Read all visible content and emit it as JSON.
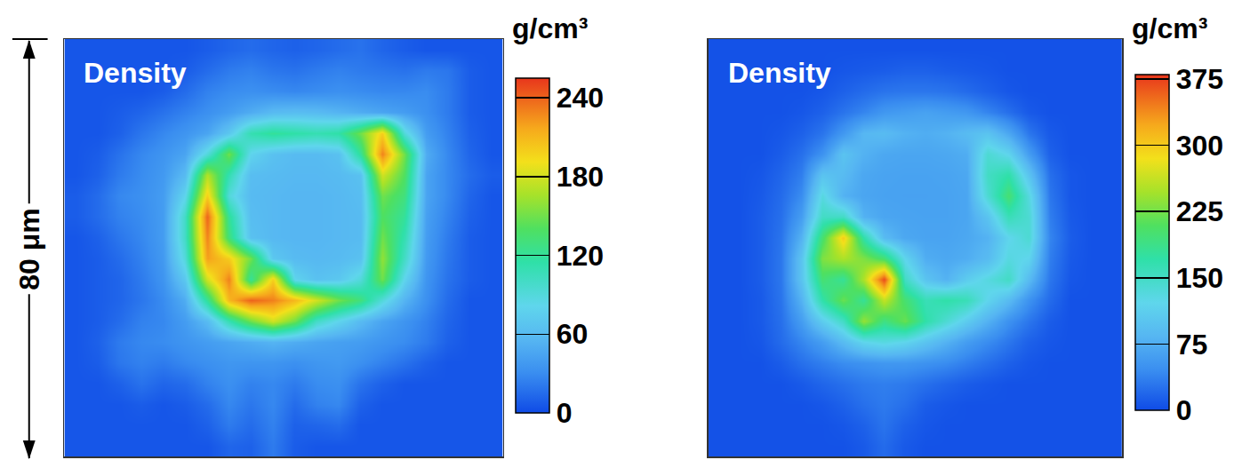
{
  "chart_data": [
    {
      "type": "heatmap",
      "title": "Density",
      "colorbar_title": "g/cm³",
      "zlim": [
        0,
        255
      ],
      "zticks": [
        0,
        60,
        120,
        180,
        240
      ],
      "grid": false,
      "tick_labels": false,
      "annotations": [
        "80 μm"
      ],
      "z": [
        [
          5,
          5,
          5,
          5,
          5,
          5,
          8,
          12,
          15,
          12,
          10,
          12,
          15,
          18,
          12,
          8,
          5,
          5,
          5,
          5
        ],
        [
          5,
          5,
          5,
          5,
          5,
          8,
          15,
          22,
          25,
          20,
          18,
          22,
          25,
          22,
          20,
          18,
          22,
          20,
          8,
          5
        ],
        [
          5,
          5,
          5,
          5,
          8,
          15,
          25,
          30,
          32,
          30,
          28,
          30,
          32,
          30,
          28,
          28,
          30,
          22,
          8,
          5
        ],
        [
          5,
          5,
          8,
          12,
          18,
          25,
          32,
          40,
          50,
          60,
          62,
          60,
          55,
          50,
          45,
          40,
          32,
          22,
          8,
          5
        ],
        [
          5,
          5,
          10,
          20,
          28,
          35,
          45,
          70,
          110,
          120,
          115,
          110,
          115,
          150,
          200,
          90,
          40,
          25,
          10,
          5
        ],
        [
          5,
          8,
          18,
          28,
          35,
          45,
          90,
          150,
          80,
          65,
          60,
          60,
          65,
          120,
          230,
          150,
          50,
          28,
          12,
          5
        ],
        [
          5,
          10,
          22,
          30,
          38,
          60,
          170,
          110,
          62,
          60,
          58,
          58,
          60,
          65,
          180,
          140,
          45,
          28,
          15,
          8
        ],
        [
          8,
          15,
          28,
          32,
          40,
          80,
          200,
          90,
          60,
          58,
          56,
          56,
          58,
          62,
          150,
          130,
          45,
          28,
          12,
          5
        ],
        [
          8,
          15,
          25,
          30,
          40,
          100,
          240,
          120,
          62,
          58,
          56,
          56,
          58,
          60,
          140,
          120,
          42,
          25,
          10,
          5
        ],
        [
          5,
          10,
          20,
          28,
          40,
          100,
          230,
          130,
          65,
          58,
          56,
          56,
          58,
          60,
          150,
          110,
          40,
          22,
          8,
          5
        ],
        [
          5,
          8,
          15,
          25,
          38,
          90,
          220,
          200,
          150,
          70,
          60,
          58,
          60,
          65,
          160,
          100,
          38,
          20,
          8,
          5
        ],
        [
          5,
          8,
          12,
          22,
          35,
          70,
          180,
          230,
          120,
          200,
          80,
          65,
          70,
          90,
          150,
          80,
          35,
          18,
          8,
          5
        ],
        [
          5,
          8,
          12,
          20,
          30,
          50,
          120,
          210,
          240,
          230,
          210,
          180,
          150,
          130,
          90,
          55,
          32,
          15,
          5,
          5
        ],
        [
          5,
          8,
          15,
          25,
          28,
          40,
          60,
          110,
          150,
          180,
          150,
          100,
          80,
          60,
          45,
          35,
          25,
          12,
          5,
          5
        ],
        [
          5,
          10,
          22,
          28,
          30,
          35,
          40,
          45,
          50,
          55,
          50,
          45,
          42,
          40,
          35,
          30,
          22,
          10,
          5,
          5
        ],
        [
          5,
          8,
          20,
          25,
          22,
          28,
          32,
          36,
          35,
          35,
          32,
          36,
          38,
          32,
          25,
          18,
          10,
          5,
          5,
          5
        ],
        [
          5,
          5,
          10,
          18,
          12,
          15,
          25,
          32,
          25,
          28,
          22,
          30,
          32,
          18,
          10,
          5,
          5,
          5,
          5,
          5
        ],
        [
          5,
          5,
          5,
          8,
          5,
          8,
          15,
          28,
          20,
          28,
          15,
          25,
          28,
          10,
          5,
          5,
          5,
          5,
          5,
          5
        ],
        [
          5,
          5,
          5,
          5,
          5,
          5,
          10,
          22,
          15,
          25,
          10,
          12,
          15,
          5,
          5,
          5,
          5,
          5,
          5,
          5
        ],
        [
          5,
          5,
          5,
          5,
          5,
          5,
          5,
          12,
          10,
          22,
          8,
          5,
          5,
          5,
          5,
          5,
          5,
          5,
          5,
          5
        ]
      ]
    },
    {
      "type": "heatmap",
      "title": "Density",
      "colorbar_title": "g/cm³",
      "zlim": [
        0,
        380
      ],
      "zticks": [
        0,
        75,
        150,
        225,
        300,
        375
      ],
      "grid": false,
      "tick_labels": false,
      "z": [
        [
          5,
          5,
          5,
          5,
          5,
          5,
          5,
          5,
          5,
          5,
          5,
          5,
          5,
          5,
          5,
          5,
          5,
          5,
          5,
          5
        ],
        [
          5,
          5,
          5,
          5,
          5,
          5,
          8,
          10,
          12,
          15,
          15,
          12,
          10,
          8,
          5,
          5,
          5,
          5,
          5,
          5
        ],
        [
          5,
          5,
          5,
          5,
          5,
          8,
          15,
          22,
          28,
          30,
          30,
          28,
          22,
          15,
          8,
          5,
          5,
          5,
          5,
          5
        ],
        [
          5,
          5,
          5,
          5,
          8,
          15,
          28,
          40,
          55,
          60,
          65,
          60,
          55,
          40,
          25,
          10,
          5,
          5,
          5,
          5
        ],
        [
          5,
          5,
          5,
          8,
          15,
          28,
          55,
          85,
          90,
          80,
          75,
          80,
          90,
          100,
          70,
          30,
          10,
          5,
          5,
          5
        ],
        [
          5,
          5,
          5,
          12,
          25,
          50,
          100,
          80,
          70,
          68,
          68,
          70,
          75,
          140,
          120,
          60,
          15,
          5,
          5,
          5
        ],
        [
          5,
          5,
          8,
          18,
          35,
          100,
          90,
          70,
          66,
          65,
          65,
          66,
          70,
          150,
          170,
          100,
          25,
          8,
          5,
          5
        ],
        [
          5,
          5,
          10,
          22,
          45,
          130,
          80,
          68,
          65,
          64,
          64,
          65,
          68,
          140,
          200,
          130,
          30,
          8,
          5,
          5
        ],
        [
          5,
          5,
          12,
          25,
          60,
          150,
          150,
          80,
          68,
          66,
          65,
          65,
          68,
          100,
          160,
          140,
          35,
          10,
          5,
          5
        ],
        [
          5,
          5,
          12,
          28,
          80,
          200,
          300,
          170,
          90,
          70,
          66,
          66,
          70,
          80,
          120,
          140,
          40,
          12,
          5,
          5
        ],
        [
          5,
          5,
          12,
          30,
          100,
          230,
          250,
          230,
          200,
          120,
          75,
          70,
          75,
          90,
          130,
          120,
          35,
          10,
          5,
          5
        ],
        [
          5,
          5,
          12,
          30,
          100,
          200,
          180,
          250,
          370,
          150,
          100,
          80,
          110,
          130,
          150,
          90,
          30,
          8,
          5,
          5
        ],
        [
          5,
          5,
          10,
          28,
          80,
          170,
          220,
          180,
          260,
          200,
          160,
          170,
          160,
          120,
          90,
          50,
          22,
          5,
          5,
          5
        ],
        [
          5,
          5,
          10,
          25,
          60,
          110,
          150,
          240,
          190,
          220,
          170,
          140,
          110,
          80,
          50,
          30,
          12,
          5,
          5,
          5
        ],
        [
          5,
          5,
          8,
          22,
          40,
          60,
          90,
          120,
          130,
          120,
          100,
          80,
          60,
          45,
          30,
          15,
          8,
          5,
          5,
          5
        ],
        [
          5,
          5,
          5,
          12,
          25,
          35,
          45,
          50,
          55,
          55,
          50,
          45,
          35,
          25,
          15,
          8,
          5,
          5,
          5,
          5
        ],
        [
          5,
          5,
          5,
          5,
          10,
          18,
          25,
          32,
          35,
          32,
          25,
          18,
          12,
          8,
          5,
          5,
          5,
          5,
          5,
          5
        ],
        [
          5,
          5,
          5,
          5,
          5,
          8,
          15,
          25,
          32,
          25,
          12,
          8,
          5,
          5,
          5,
          5,
          5,
          5,
          5,
          5
        ],
        [
          5,
          5,
          5,
          5,
          5,
          5,
          8,
          15,
          28,
          15,
          8,
          5,
          5,
          5,
          5,
          5,
          5,
          5,
          5,
          5
        ],
        [
          5,
          5,
          5,
          5,
          5,
          5,
          5,
          10,
          22,
          10,
          5,
          5,
          5,
          5,
          5,
          5,
          5,
          5,
          5,
          5
        ]
      ]
    }
  ]
}
